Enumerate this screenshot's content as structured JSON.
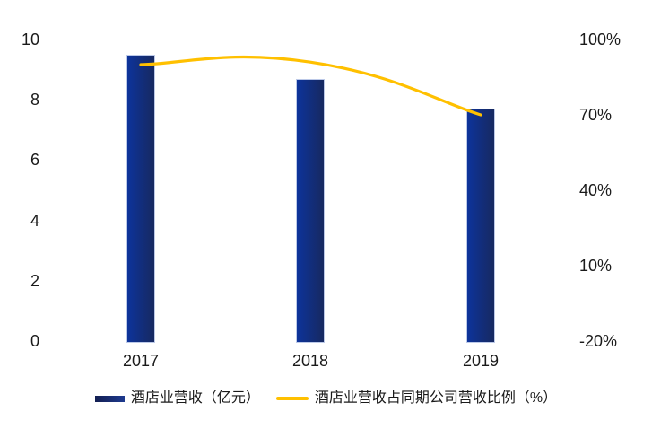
{
  "chart_data": {
    "type": "combo-bar-line",
    "title": "",
    "categories": [
      "2017",
      "2018",
      "2019"
    ],
    "series": [
      {
        "name": "酒店业营收（亿元）",
        "type": "bar",
        "axis": "left",
        "values": [
          9.5,
          8.7,
          7.7
        ]
      },
      {
        "name": "酒店业营收占同期公司营收比例（%）",
        "type": "line",
        "axis": "right",
        "values": [
          90,
          91,
          70
        ]
      }
    ],
    "left_axis": {
      "min": 0,
      "max": 10,
      "ticks": [
        "0",
        "2",
        "4",
        "6",
        "8",
        "10"
      ],
      "tick_values": [
        0,
        2,
        4,
        6,
        8,
        10
      ]
    },
    "right_axis": {
      "min": -20,
      "max": 100,
      "ticks": [
        "-20%",
        "10%",
        "40%",
        "70%",
        "100%"
      ],
      "tick_values": [
        -20,
        10,
        40,
        70,
        100
      ]
    },
    "grid": false,
    "legend_position": "bottom"
  },
  "legend": {
    "bar_label": "酒店业营收（亿元）",
    "line_label": "酒店业营收占同期公司营收比例（%）"
  },
  "colors": {
    "bar_gradient_start": "#0d339b",
    "bar_gradient_end": "#172960",
    "bar_border": "#bcc9e8",
    "legend_swatch_start": "#131f52",
    "legend_swatch_end": "#1e3a8f",
    "line": "#FFC000",
    "text": "#1a1a1a"
  }
}
